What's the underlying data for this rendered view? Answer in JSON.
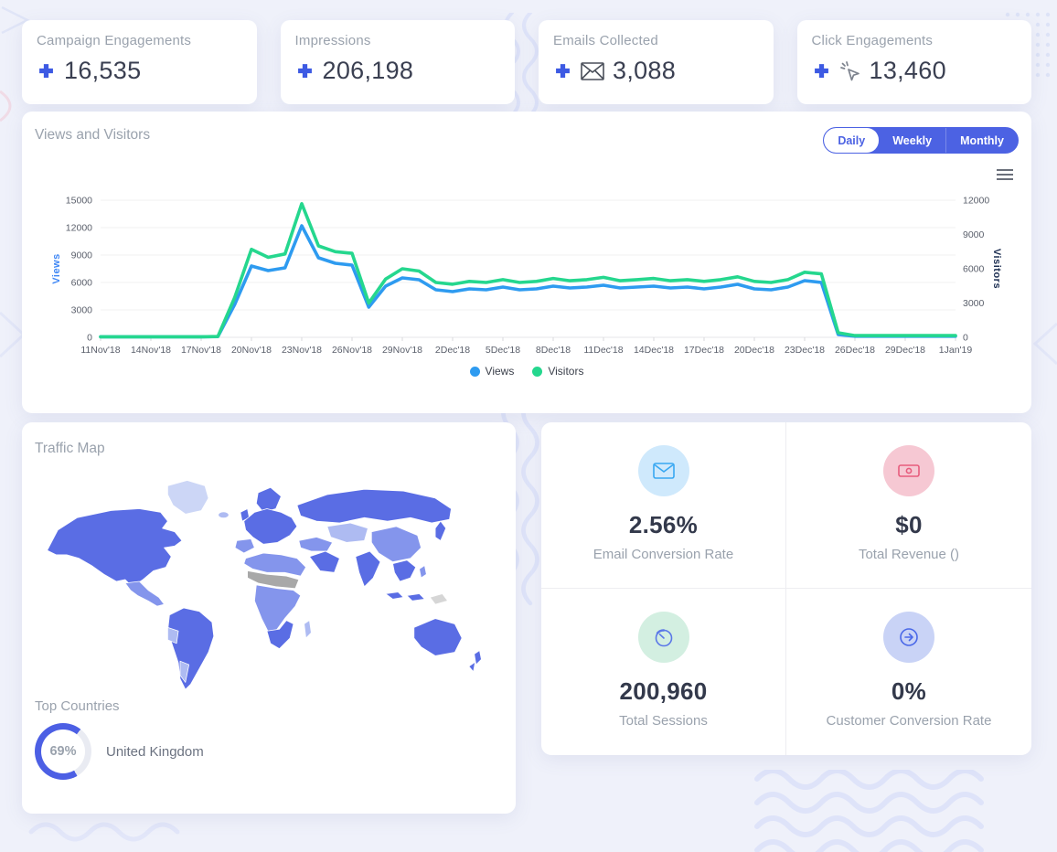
{
  "page": {
    "background": "#eff1fa"
  },
  "stat_cards": [
    {
      "label": "Campaign Engagements",
      "value": "16,535"
    },
    {
      "label": "Impressions",
      "value": "206,198"
    },
    {
      "label": "Emails Collected",
      "value": "3,088"
    },
    {
      "label": "Click Engagements",
      "value": "13,460"
    }
  ],
  "views_visitors": {
    "title": "Views and Visitors",
    "tabs": [
      {
        "label": "Daily",
        "active": true
      },
      {
        "label": "Weekly",
        "active": false
      },
      {
        "label": "Monthly",
        "active": false
      }
    ]
  },
  "chart_data": {
    "type": "line",
    "title": "Views and Visitors",
    "x": [
      "11Nov'18",
      "12Nov'18",
      "13Nov'18",
      "14Nov'18",
      "15Nov'18",
      "16Nov'18",
      "17Nov'18",
      "18Nov'18",
      "19Nov'18",
      "20Nov'18",
      "21Nov'18",
      "22Nov'18",
      "23Nov'18",
      "24Nov'18",
      "25Nov'18",
      "26Nov'18",
      "27Nov'18",
      "28Nov'18",
      "29Nov'18",
      "30Nov'18",
      "1Dec'18",
      "2Dec'18",
      "3Dec'18",
      "4Dec'18",
      "5Dec'18",
      "6Dec'18",
      "7Dec'18",
      "8Dec'18",
      "9Dec'18",
      "10Dec'18",
      "11Dec'18",
      "12Dec'18",
      "13Dec'18",
      "14Dec'18",
      "15Dec'18",
      "16Dec'18",
      "17Dec'18",
      "18Dec'18",
      "19Dec'18",
      "20Dec'18",
      "21Dec'18",
      "22Dec'18",
      "23Dec'18",
      "24Dec'18",
      "25Dec'18",
      "26Dec'18",
      "27Dec'18",
      "28Dec'18",
      "29Dec'18",
      "30Dec'18",
      "31Dec'18",
      "1Jan'19"
    ],
    "tick_every": 3,
    "series": [
      {
        "name": "Views",
        "axis": "left",
        "color": "#2e9bf0",
        "values": [
          60,
          55,
          58,
          60,
          55,
          60,
          58,
          80,
          3600,
          7800,
          7300,
          7600,
          12200,
          8700,
          8100,
          7900,
          3300,
          5600,
          6500,
          6300,
          5200,
          5000,
          5300,
          5200,
          5500,
          5200,
          5300,
          5600,
          5400,
          5500,
          5700,
          5400,
          5500,
          5600,
          5400,
          5500,
          5300,
          5500,
          5800,
          5300,
          5200,
          5500,
          6200,
          6000,
          300,
          120,
          120,
          120,
          120,
          120,
          120,
          120
        ]
      },
      {
        "name": "Visitors",
        "axis": "right",
        "color": "#25d78e",
        "values": [
          50,
          45,
          48,
          50,
          45,
          50,
          48,
          70,
          3500,
          7700,
          7000,
          7300,
          11700,
          8000,
          7500,
          7350,
          3000,
          5100,
          6000,
          5800,
          4800,
          4650,
          4900,
          4800,
          5050,
          4800,
          4900,
          5150,
          4950,
          5050,
          5250,
          4950,
          5050,
          5150,
          4950,
          5050,
          4900,
          5050,
          5300,
          4900,
          4800,
          5050,
          5700,
          5550,
          400,
          150,
          150,
          150,
          150,
          150,
          150,
          150
        ]
      }
    ],
    "left_axis": {
      "title": "Views",
      "color": "#3f87f5",
      "max": 15000,
      "ticks": [
        0,
        3000,
        6000,
        9000,
        12000,
        15000
      ]
    },
    "right_axis": {
      "title": "Visitors",
      "color": "#1d2f52",
      "max": 12000,
      "ticks": [
        0,
        3000,
        6000,
        9000,
        12000
      ]
    },
    "grid": true,
    "legend_position": "bottom"
  },
  "traffic_map": {
    "title": "Traffic Map",
    "top_countries_title": "Top Countries",
    "top_countries": [
      {
        "name": "United Kingdom",
        "percent": 69,
        "percent_label": "69%"
      }
    ],
    "palette": {
      "high": "#5a6de4",
      "medium": "#8495ec",
      "low": "#aebbf2",
      "very_low": "#ccd6f6",
      "gray": "#a8a8a8",
      "light_gray": "#d6d6d6"
    },
    "donut_color": "#4c5fe4"
  },
  "metrics": [
    {
      "value": "2.56%",
      "label": "Email Conversion Rate",
      "icon": "envelope-circle-icon",
      "icon_bg": "#cfe9fc",
      "icon_color": "#38a8f2"
    },
    {
      "value": "$0",
      "label": "Total Revenue ()",
      "icon": "banknote-circle-icon",
      "icon_bg": "#f6c8d3",
      "icon_color": "#e75c7d"
    },
    {
      "value": "200,960",
      "label": "Total Sessions",
      "icon": "timer-circle-icon",
      "icon_bg": "#d3efe1",
      "icon_color": "#5b78e8"
    },
    {
      "value": "0%",
      "label": "Customer Conversion Rate",
      "icon": "arrow-right-circle-icon",
      "icon_bg": "#c9d3f6",
      "icon_color": "#4a68e8"
    }
  ]
}
